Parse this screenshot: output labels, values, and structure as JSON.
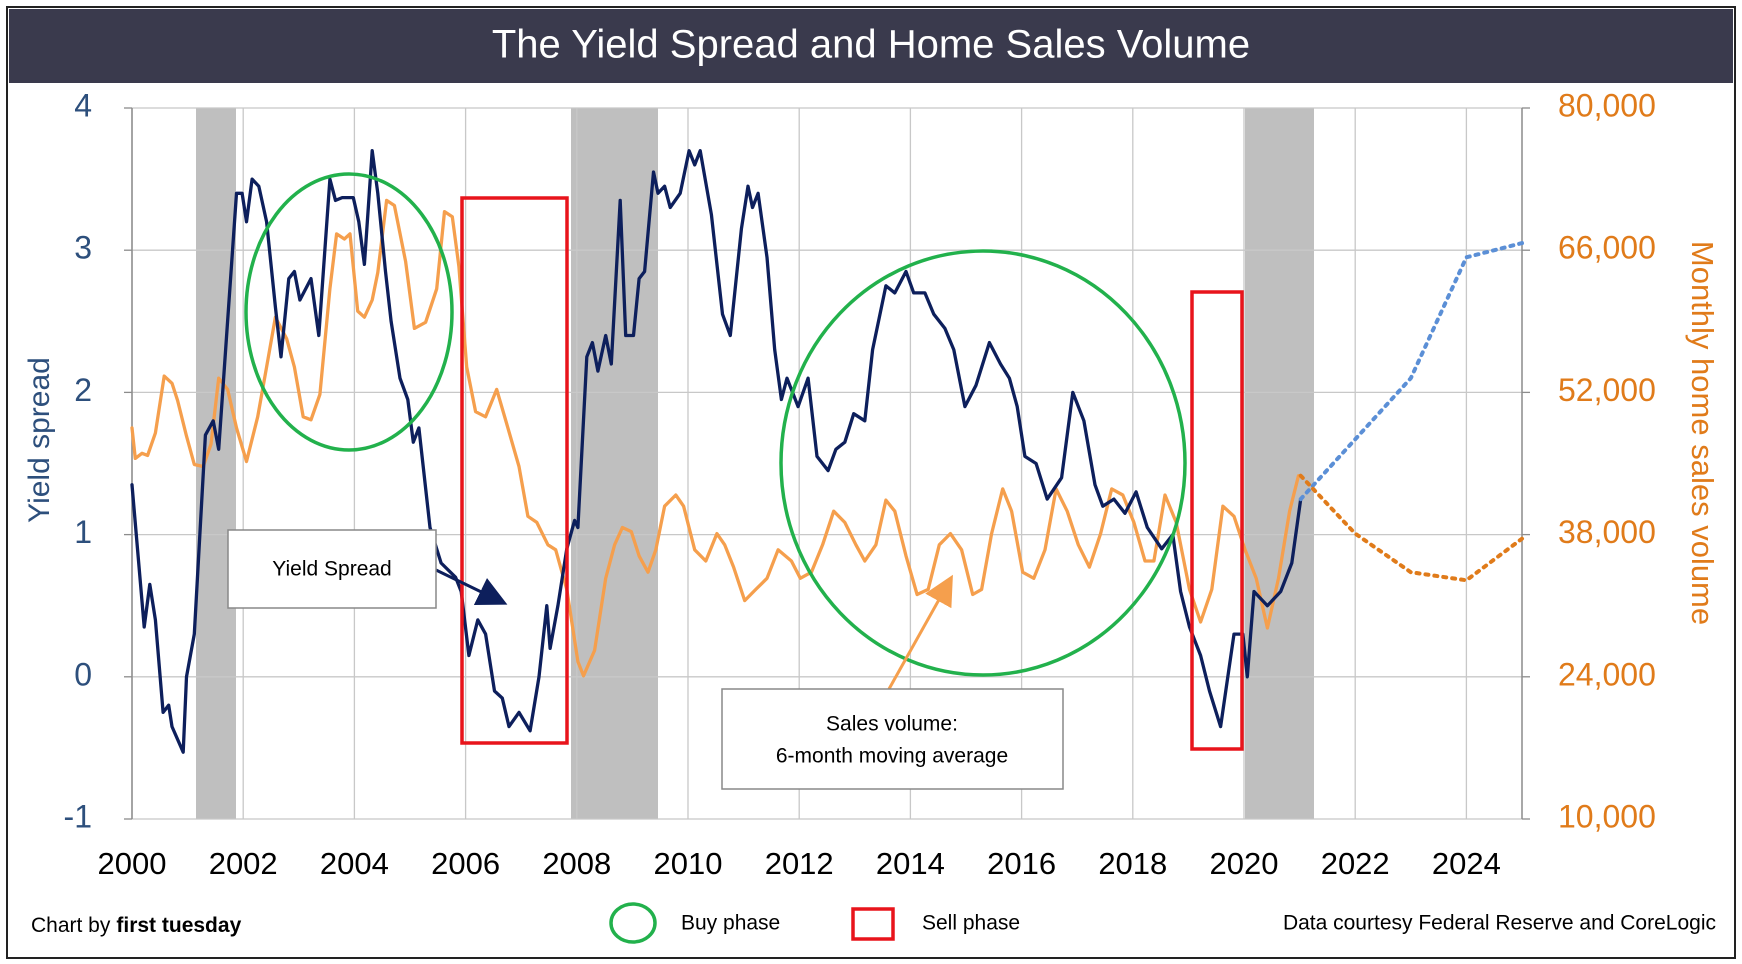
{
  "chart_data": {
    "type": "line",
    "title": "The Yield Spread and Home Sales Volume",
    "ylabel": "Yield spread",
    "y2label": "Monthly home sales volume",
    "xlim": [
      2000,
      2025
    ],
    "xticks": [
      2000,
      2002,
      2004,
      2006,
      2008,
      2010,
      2012,
      2014,
      2016,
      2018,
      2020,
      2022,
      2024
    ],
    "ylim": [
      -1,
      4
    ],
    "yticks": [
      -1,
      0,
      1,
      2,
      3,
      4
    ],
    "y2lim": [
      10000,
      80000
    ],
    "y2ticks": [
      {
        "value": 10000,
        "label": "10,000"
      },
      {
        "value": 24000,
        "label": "24,000"
      },
      {
        "value": 38000,
        "label": "38,000"
      },
      {
        "value": 52000,
        "label": "52,000"
      },
      {
        "value": 66000,
        "label": "66,000"
      },
      {
        "value": 80000,
        "label": "80,000"
      }
    ],
    "grid": true,
    "series": [
      {
        "color": "#f59f4d",
        "axis": "y2",
        "style": "solid",
        "x": [
          2000.0,
          2000.06,
          2000.18,
          2000.28,
          2000.42,
          2000.58,
          2000.72,
          2000.82,
          2000.98,
          2001.12,
          2001.28,
          2001.42,
          2001.56,
          2001.72,
          2001.88,
          2002.06,
          2002.26,
          2002.42,
          2002.58,
          2002.78,
          2002.92,
          2003.08,
          2003.22,
          2003.38,
          2003.56,
          2003.68,
          2003.82,
          2003.92,
          2004.06,
          2004.18,
          2004.32,
          2004.42,
          2004.58,
          2004.72,
          2004.92,
          2005.08,
          2005.28,
          2005.48,
          2005.62,
          2005.76,
          2005.88,
          2006.02,
          2006.18,
          2006.36,
          2006.56,
          2006.76,
          2006.96,
          2007.12,
          2007.28,
          2007.48,
          2007.62,
          2007.82,
          2008.02,
          2008.12,
          2008.32,
          2008.52,
          2008.68,
          2008.82,
          2008.98,
          2009.12,
          2009.28,
          2009.42,
          2009.58,
          2009.78,
          2009.92,
          2010.12,
          2010.32,
          2010.52,
          2010.66,
          2010.82,
          2011.02,
          2011.22,
          2011.42,
          2011.62,
          2011.86,
          2012.02,
          2012.22,
          2012.42,
          2012.62,
          2012.82,
          2013.02,
          2013.18,
          2013.38,
          2013.56,
          2013.72,
          2013.92,
          2014.12,
          2014.32,
          2014.52,
          2014.72,
          2014.92,
          2015.12,
          2015.28,
          2015.46,
          2015.66,
          2015.82,
          2016.02,
          2016.22,
          2016.42,
          2016.62,
          2016.82,
          2017.02,
          2017.22,
          2017.42,
          2017.62,
          2017.82,
          2018.02,
          2018.22,
          2018.38,
          2018.58,
          2018.78,
          2019.02,
          2019.22,
          2019.42,
          2019.62,
          2019.82,
          2020.02,
          2020.22,
          2020.42,
          2020.62,
          2020.82,
          2020.98
        ],
        "values": [
          48500,
          45500,
          46000,
          45800,
          48000,
          53600,
          52900,
          51200,
          47700,
          44900,
          44700,
          46900,
          53400,
          52300,
          48500,
          45200,
          49600,
          54500,
          59400,
          57300,
          54500,
          49600,
          49300,
          51800,
          62200,
          67600,
          67100,
          67600,
          60000,
          59400,
          61100,
          63800,
          70900,
          70400,
          64900,
          58300,
          58900,
          62200,
          69800,
          69300,
          64400,
          54500,
          50100,
          49600,
          52300,
          48500,
          44700,
          39800,
          39200,
          37000,
          36500,
          32600,
          25500,
          24100,
          26600,
          33700,
          37000,
          38700,
          38300,
          35900,
          34300,
          36500,
          40800,
          41900,
          40800,
          36500,
          35400,
          38100,
          37000,
          34800,
          31500,
          32600,
          33700,
          36500,
          35400,
          33700,
          34300,
          37000,
          40300,
          39200,
          37000,
          35400,
          37000,
          41400,
          40300,
          35900,
          32100,
          32600,
          37000,
          38100,
          36500,
          32100,
          32600,
          38100,
          42500,
          40300,
          34300,
          33700,
          36500,
          42500,
          40300,
          37000,
          34800,
          38100,
          42500,
          41900,
          39200,
          35400,
          35400,
          41900,
          39200,
          32600,
          29400,
          32600,
          40800,
          39800,
          36500,
          33700,
          28800,
          33700,
          40300,
          43800
        ]
      },
      {
        "color": "#0d1f5c",
        "axis": "y",
        "style": "solid",
        "x": [
          2000.0,
          2000.22,
          2000.32,
          2000.42,
          2000.56,
          2000.66,
          2000.72,
          2000.92,
          2000.98,
          2001.12,
          2001.32,
          2001.46,
          2001.56,
          2001.72,
          2001.88,
          2001.98,
          2002.06,
          2002.16,
          2002.28,
          2002.42,
          2002.58,
          2002.68,
          2002.82,
          2002.92,
          2003.02,
          2003.22,
          2003.36,
          2003.56,
          2003.66,
          2003.78,
          2003.98,
          2004.08,
          2004.18,
          2004.32,
          2004.42,
          2004.56,
          2004.66,
          2004.82,
          2004.96,
          2005.06,
          2005.16,
          2005.36,
          2005.56,
          2005.82,
          2005.92,
          2006.06,
          2006.22,
          2006.36,
          2006.52,
          2006.66,
          2006.78,
          2006.96,
          2007.16,
          2007.32,
          2007.46,
          2007.52,
          2007.66,
          2007.82,
          2007.96,
          2008.02,
          2008.18,
          2008.28,
          2008.38,
          2008.52,
          2008.62,
          2008.78,
          2008.88,
          2009.02,
          2009.12,
          2009.22,
          2009.38,
          2009.46,
          2009.58,
          2009.68,
          2009.86,
          2010.02,
          2010.12,
          2010.22,
          2010.42,
          2010.62,
          2010.76,
          2010.96,
          2011.08,
          2011.16,
          2011.26,
          2011.42,
          2011.56,
          2011.68,
          2011.78,
          2011.98,
          2012.16,
          2012.32,
          2012.52,
          2012.66,
          2012.82,
          2012.98,
          2013.18,
          2013.32,
          2013.56,
          2013.72,
          2013.92,
          2014.06,
          2014.26,
          2014.42,
          2014.62,
          2014.78,
          2014.98,
          2015.18,
          2015.42,
          2015.62,
          2015.78,
          2015.92,
          2016.06,
          2016.26,
          2016.46,
          2016.72,
          2016.92,
          2017.12,
          2017.32,
          2017.46,
          2017.66,
          2017.86,
          2018.06,
          2018.26,
          2018.52,
          2018.72,
          2018.86,
          2019.02,
          2019.22,
          2019.38,
          2019.58,
          2019.82,
          2019.98,
          2020.06,
          2020.18,
          2020.42,
          2020.66,
          2020.86,
          2021.02
        ],
        "values": [
          1.35,
          0.35,
          0.65,
          0.4,
          -0.25,
          -0.2,
          -0.35,
          -0.53,
          0.0,
          0.3,
          1.7,
          1.8,
          1.6,
          2.5,
          3.4,
          3.4,
          3.2,
          3.5,
          3.45,
          3.2,
          2.6,
          2.25,
          2.8,
          2.85,
          2.65,
          2.8,
          2.4,
          3.5,
          3.35,
          3.37,
          3.37,
          3.2,
          2.9,
          3.7,
          3.4,
          2.85,
          2.5,
          2.1,
          1.95,
          1.65,
          1.75,
          1.05,
          0.8,
          0.7,
          0.6,
          0.15,
          0.4,
          0.3,
          -0.1,
          -0.15,
          -0.35,
          -0.25,
          -0.38,
          0.0,
          0.5,
          0.2,
          0.5,
          0.9,
          1.1,
          1.05,
          2.25,
          2.35,
          2.15,
          2.4,
          2.2,
          3.35,
          2.4,
          2.4,
          2.8,
          2.85,
          3.55,
          3.4,
          3.45,
          3.3,
          3.4,
          3.7,
          3.6,
          3.7,
          3.25,
          2.55,
          2.4,
          3.15,
          3.45,
          3.3,
          3.4,
          2.95,
          2.3,
          1.95,
          2.1,
          1.9,
          2.1,
          1.55,
          1.45,
          1.6,
          1.65,
          1.85,
          1.8,
          2.3,
          2.75,
          2.7,
          2.85,
          2.7,
          2.7,
          2.55,
          2.45,
          2.3,
          1.9,
          2.05,
          2.35,
          2.2,
          2.1,
          1.9,
          1.55,
          1.5,
          1.25,
          1.4,
          2.0,
          1.8,
          1.35,
          1.2,
          1.25,
          1.15,
          1.3,
          1.05,
          0.9,
          1.0,
          0.6,
          0.35,
          0.15,
          -0.1,
          -0.35,
          0.3,
          0.3,
          0.0,
          0.6,
          0.5,
          0.6,
          0.8,
          1.25
        ]
      },
      {
        "color": "#5b8fd6",
        "axis": "y",
        "style": "dotted",
        "x": [
          2021.02,
          2022,
          2023,
          2024,
          2025
        ],
        "values": [
          1.25,
          1.67,
          2.1,
          2.95,
          3.05
        ]
      },
      {
        "color": "#e07b1a",
        "axis": "y2",
        "style": "dotted",
        "x": [
          2021.02,
          2022,
          2023,
          2024,
          2025
        ],
        "values": [
          43800,
          38100,
          34300,
          33500,
          37600
        ]
      }
    ],
    "annotations": [
      "Yield Spread",
      "Sales volume:",
      "6-month moving average"
    ],
    "legend": [
      "Buy phase",
      "Sell phase"
    ],
    "credit_prefix": "Chart by",
    "credit_name": "first tuesday",
    "source": "Data courtesy Federal Reserve and CoreLogic"
  }
}
